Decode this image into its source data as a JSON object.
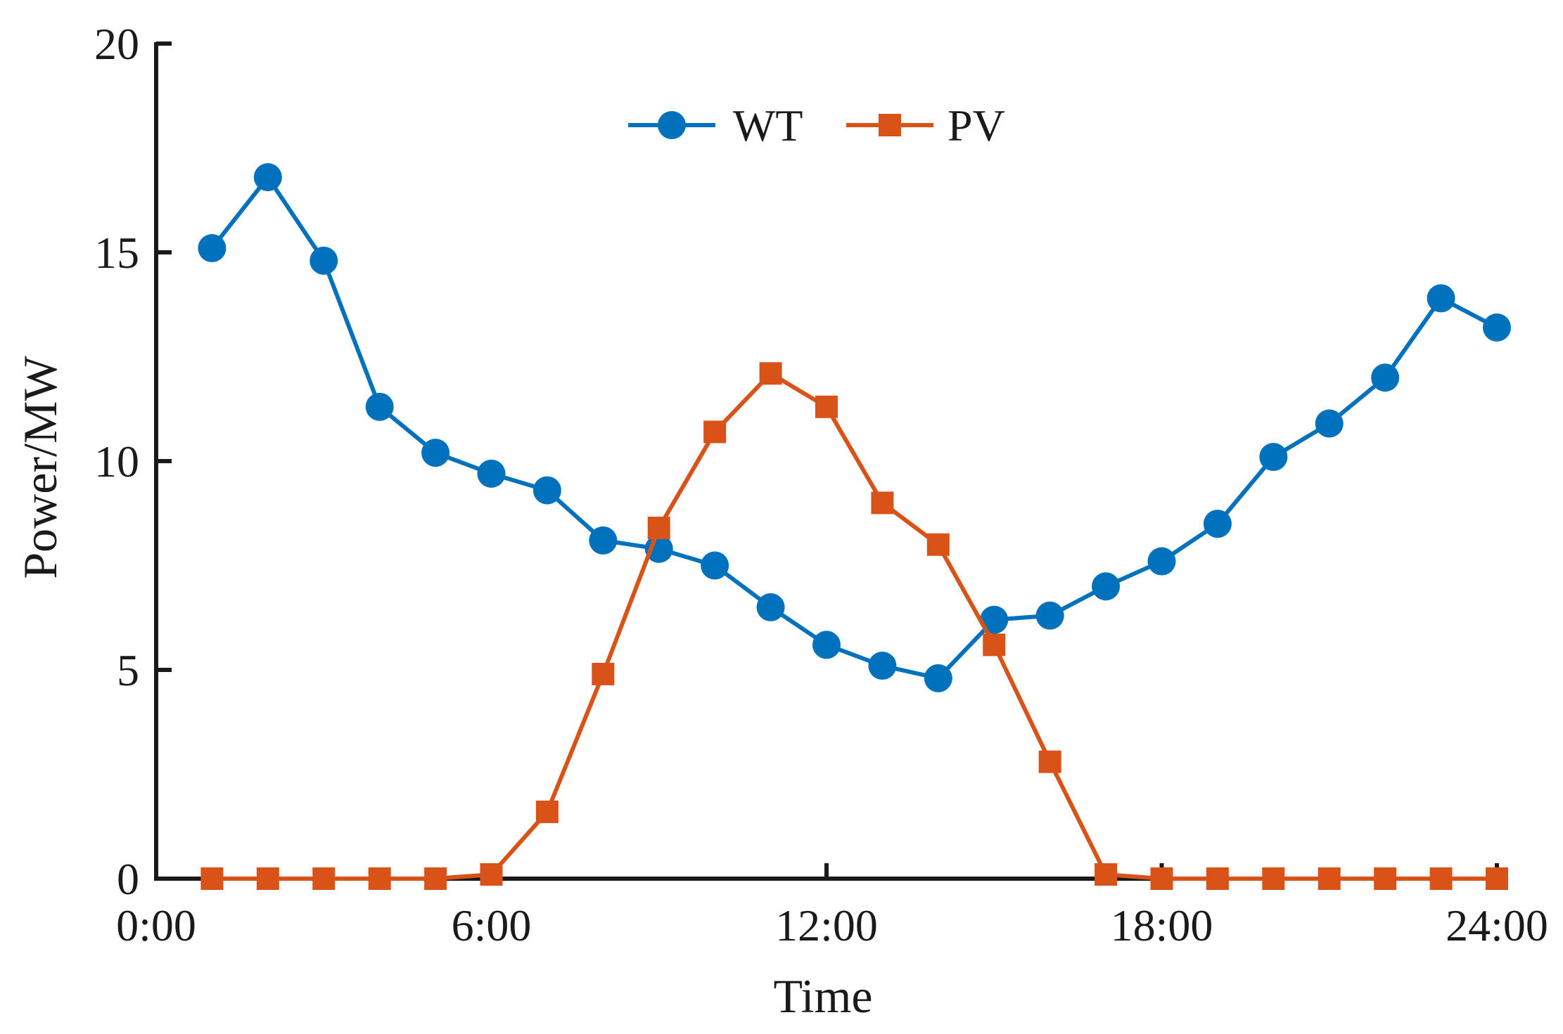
{
  "chart_data": {
    "type": "line",
    "xlabel": "Time",
    "ylabel": "Power/MW",
    "x_ticks": [
      "0:00",
      "6:00",
      "12:00",
      "18:00",
      "24:00"
    ],
    "y_ticks": [
      "0",
      "5",
      "10",
      "15",
      "20"
    ],
    "xlim_hours": [
      0,
      24
    ],
    "ylim": [
      0,
      20
    ],
    "grid": false,
    "legend_position": "top-center",
    "x_hours": [
      1,
      2,
      3,
      4,
      5,
      6,
      7,
      8,
      9,
      10,
      11,
      12,
      13,
      14,
      15,
      16,
      17,
      18,
      19,
      20,
      21,
      22,
      23,
      24
    ],
    "series": [
      {
        "name": "WT",
        "color": "#0072BD",
        "marker": "circle",
        "values": [
          15.1,
          16.8,
          14.8,
          11.3,
          10.2,
          9.7,
          9.3,
          8.1,
          7.9,
          7.5,
          6.5,
          5.6,
          5.1,
          4.8,
          6.2,
          6.3,
          7.0,
          7.6,
          8.5,
          10.1,
          10.9,
          12.0,
          13.9,
          13.2
        ]
      },
      {
        "name": "PV",
        "color": "#D95319",
        "marker": "square",
        "values": [
          0,
          0,
          0,
          0,
          0,
          0.1,
          1.6,
          4.9,
          8.4,
          10.7,
          12.1,
          11.3,
          9.0,
          8.0,
          5.6,
          2.8,
          0.1,
          0,
          0,
          0,
          0,
          0,
          0,
          0
        ]
      }
    ]
  }
}
